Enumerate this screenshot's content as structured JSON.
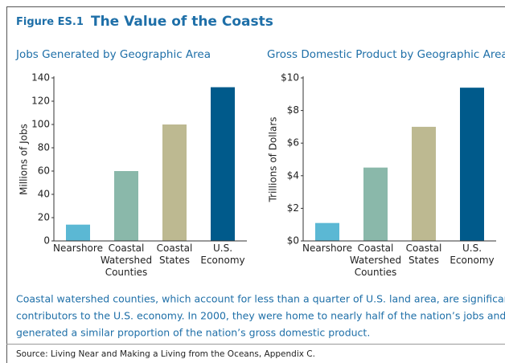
{
  "header": {
    "figure_label": "Figure ES.1",
    "title": "The Value of the Coasts"
  },
  "chart_data": [
    {
      "type": "bar",
      "title": "Jobs Generated by Geographic Area",
      "y_label": "Millions of Jobs",
      "categories": [
        "Nearshore",
        "Coastal Watershed Counties",
        "Coastal States",
        "U.S. Economy"
      ],
      "values": [
        14,
        60,
        100,
        132
      ],
      "colors": [
        "#5bb8d4",
        "#8ab8aa",
        "#bdb991",
        "#005a8b"
      ],
      "ylim": [
        0,
        140
      ],
      "yticks": [
        0,
        20,
        40,
        60,
        80,
        100,
        120,
        140
      ]
    },
    {
      "type": "bar",
      "title": "Gross Domestic Product by Geographic Area",
      "y_label": "Trillions of Dollars",
      "categories": [
        "Nearshore",
        "Coastal Watershed Counties",
        "Coastal States",
        "U.S. Economy"
      ],
      "values": [
        1.1,
        4.5,
        7.0,
        9.4
      ],
      "colors": [
        "#5bb8d4",
        "#8ab8aa",
        "#bdb991",
        "#005a8b"
      ],
      "ylim": [
        0,
        10
      ],
      "yticks": [
        {
          "value": 0,
          "label": "$0"
        },
        {
          "value": 2,
          "label": "$2"
        },
        {
          "value": 4,
          "label": "$4"
        },
        {
          "value": 6,
          "label": "$6"
        },
        {
          "value": 8,
          "label": "$8"
        },
        {
          "value": 10,
          "label": "$10"
        }
      ]
    }
  ],
  "caption": [
    "Coastal watershed counties, which account for less than a quarter of U.S. land area, are significant",
    "contributors to the U.S. economy. In 2000, they were home to nearly half of the nation’s jobs and",
    "generated a similar proportion of the nation’s gross domestic product."
  ],
  "source": "Source: Living Near and Making a Living from the Oceans, Appendix C."
}
